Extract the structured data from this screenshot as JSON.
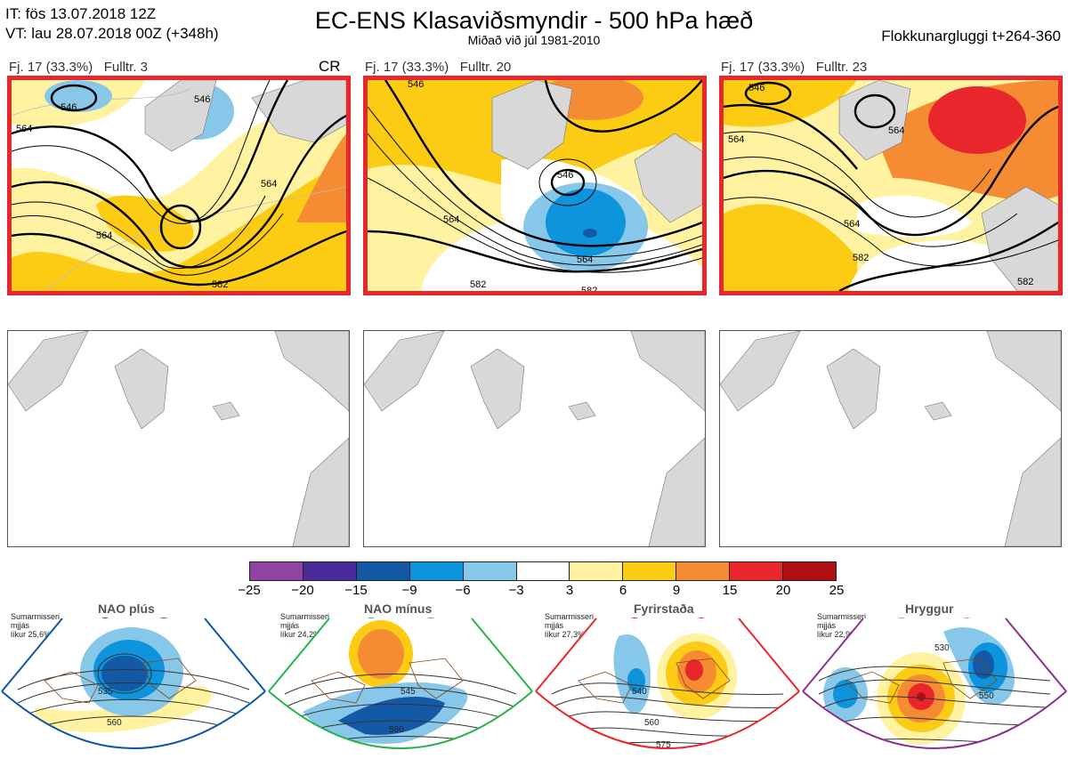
{
  "header": {
    "it_line": "IT: fös 13.07.2018 12Z",
    "vt_line": "VT: lau 28.07.2018 00Z  (+348h)",
    "title": "EC-ENS Klasaviðsmyndir - 500 hPa hæð",
    "subtitle": "Miðað við júl 1981-2010",
    "window": "Flokkunargluggi t+264-360"
  },
  "panels": [
    {
      "fj": "Fj. 17 (33.3%)",
      "rep": "Fulltr. 3",
      "tag": "CR",
      "contours": [
        "546",
        "546",
        "564",
        "564",
        "564",
        "582"
      ]
    },
    {
      "fj": "Fj. 17 (33.3%)",
      "rep": "Fulltr. 20",
      "tag": "",
      "contours": [
        "546",
        "546",
        "564",
        "564",
        "582",
        "582"
      ]
    },
    {
      "fj": "Fj. 17 (33.3%)",
      "rep": "Fulltr. 23",
      "tag": "",
      "contours": [
        "546",
        "564",
        "564",
        "564",
        "582",
        "582"
      ]
    }
  ],
  "colorbar": {
    "ticks": [
      "−25",
      "−20",
      "−15",
      "−9",
      "−6",
      "−3",
      "3",
      "6",
      "9",
      "15",
      "20",
      "25"
    ],
    "colors": [
      "#8e44a0",
      "#4b2b9c",
      "#1459a5",
      "#0d94dc",
      "#87c7ea",
      "#ffffff",
      "#fff2a0",
      "#fccc14",
      "#f58b33",
      "#e8262b",
      "#b10e13"
    ]
  },
  "regimes": [
    {
      "name": "NAO plús",
      "season": "Sumarmisseri",
      "similarity": "mjjás",
      "prob": "líkur 25,6%",
      "dot_color": "#0c58a6",
      "frame_color": "#0c58a6",
      "contours": [
        "535",
        "560"
      ]
    },
    {
      "name": "NAO mínus",
      "season": "Sumarmisseri",
      "similarity": "mjjás",
      "prob": "líkur 24,2%",
      "dot_color": "#28b24b",
      "frame_color": "#28b24b",
      "contours": [
        "545",
        "560",
        "575"
      ]
    },
    {
      "name": "Fyrirstaða",
      "season": "Sumarmisseri",
      "similarity": "mjjás",
      "prob": "líkur 27,3%",
      "dot_color": "#e8262b",
      "frame_color": "#e8262b",
      "contours": [
        "540",
        "560",
        "575"
      ]
    },
    {
      "name": "Hryggur",
      "season": "Sumarmisseri",
      "similarity": "mjjás",
      "prob": "líkur 22,9%",
      "dot_color": "#ea6cef",
      "frame_color": "#8e2f8e",
      "contours": [
        "530",
        "550",
        "575"
      ]
    }
  ]
}
